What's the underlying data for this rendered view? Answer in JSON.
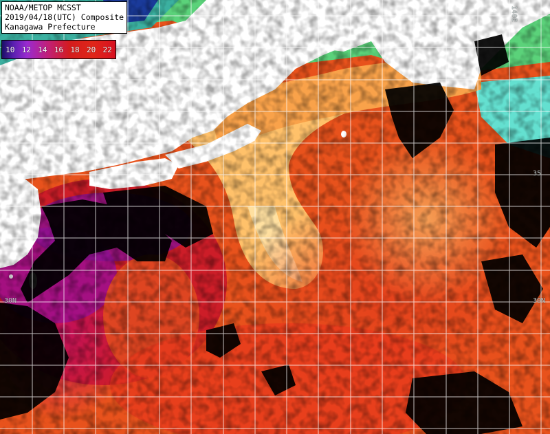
{
  "header": {
    "line1": "NOAA/METOP MCSST",
    "line2": "2019/04/18(UTC) Composite",
    "line3": "Kanagawa Prefecture"
  },
  "colorbar": {
    "ticks": [
      "10",
      "12",
      "14",
      "16",
      "18",
      "20",
      "22"
    ]
  },
  "grid_labels": {
    "lat_30n_left": "30N",
    "lat_30n_right": "30N",
    "lat_35n_right": "35",
    "lon_top": "140E"
  }
}
